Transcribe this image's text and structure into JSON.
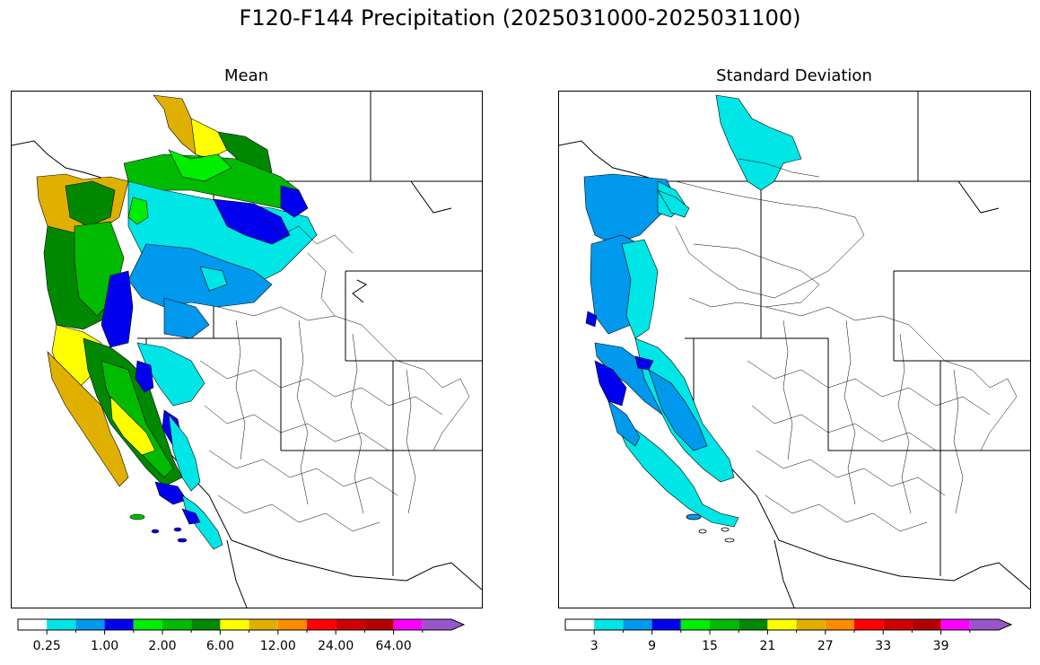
{
  "title": "F120-F144 Precipitation (2025031000-2025031100)",
  "panels": [
    {
      "id": "mean",
      "title": "Mean",
      "colorbar": {
        "colors": [
          "#ffffff",
          "#00e5e5",
          "#0099ee",
          "#0000ee",
          "#00ee00",
          "#00bb00",
          "#008800",
          "#ffff00",
          "#e0b000",
          "#ff8c00",
          "#ff0000",
          "#d00000",
          "#b40000",
          "#ff00ff",
          "#9955cc"
        ],
        "labels": [
          "0.25",
          "1.00",
          "2.00",
          "6.00",
          "12.00",
          "24.00",
          "64.00"
        ],
        "extend": "max"
      }
    },
    {
      "id": "stddev",
      "title": "Standard Deviation",
      "colorbar": {
        "colors": [
          "#ffffff",
          "#00e5e5",
          "#0099ee",
          "#0000ee",
          "#00ee00",
          "#00bb00",
          "#008800",
          "#ffff00",
          "#e0b000",
          "#ff8c00",
          "#ff0000",
          "#d00000",
          "#b40000",
          "#ff00ff",
          "#9955cc"
        ],
        "labels": [
          "3",
          "9",
          "15",
          "21",
          "27",
          "33",
          "39"
        ],
        "extend": "max"
      }
    }
  ]
}
